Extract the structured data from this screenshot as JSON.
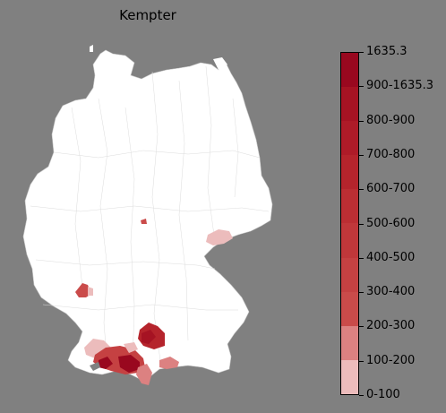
{
  "title": "Kempter",
  "legend": {
    "bins": [
      {
        "label": "1635.3",
        "color": "#99081f"
      },
      {
        "label": "900-1635.3",
        "color": "#a61323"
      },
      {
        "label": "800-900",
        "color": "#ae1b28"
      },
      {
        "label": "700-800",
        "color": "#b5242c"
      },
      {
        "label": "600-700",
        "color": "#bb2e33"
      },
      {
        "label": "500-600",
        "color": "#c0373a"
      },
      {
        "label": "400-500",
        "color": "#c54142"
      },
      {
        "label": "300-400",
        "color": "#ca4b4a"
      },
      {
        "label": "200-300",
        "color": "#dc8181"
      },
      {
        "label": "100-200",
        "color": "#ecbcbc"
      },
      {
        "label": "0-100",
        "color": "#ffffff"
      }
    ]
  },
  "colors": {
    "background": "#808080",
    "base_region": "#ffffff",
    "border": "#d0d0d0"
  }
}
